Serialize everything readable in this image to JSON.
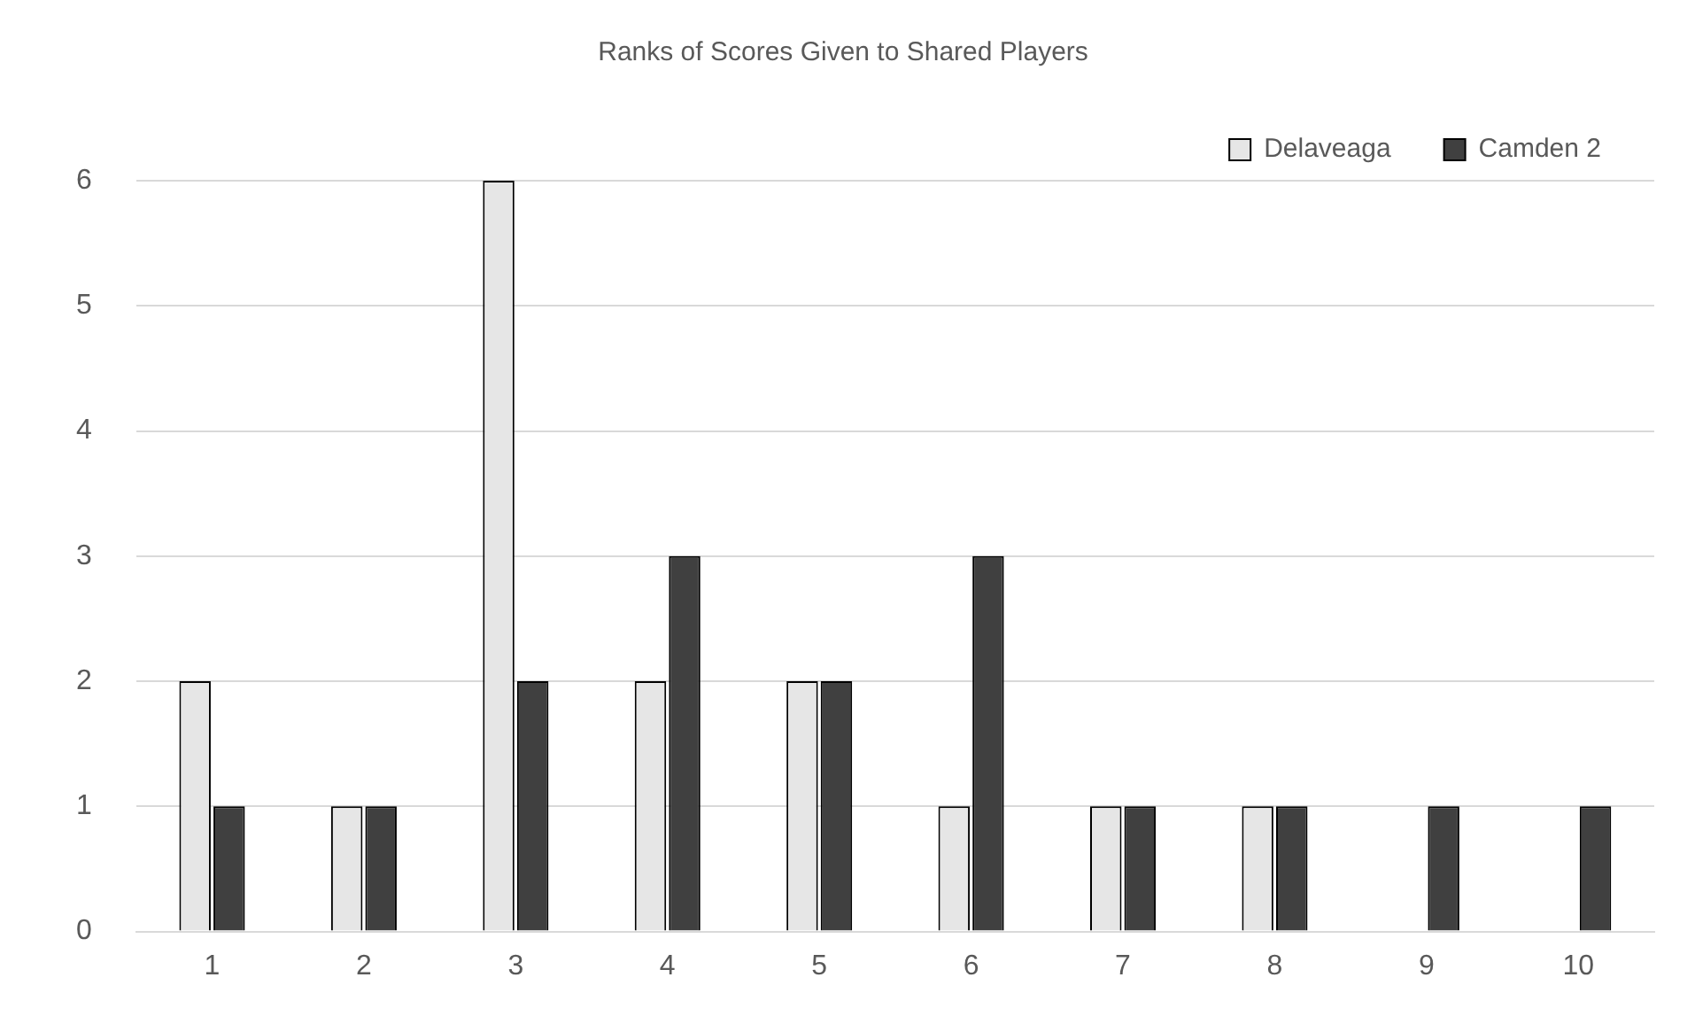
{
  "chart_data": {
    "type": "bar",
    "title": "Ranks of Scores Given to Shared Players",
    "categories": [
      "1",
      "2",
      "3",
      "4",
      "5",
      "6",
      "7",
      "8",
      "9",
      "10"
    ],
    "series": [
      {
        "name": "Delaveaga",
        "color": "#e6e6e6",
        "values": [
          2,
          1,
          6,
          2,
          2,
          1,
          1,
          1,
          0,
          0
        ]
      },
      {
        "name": "Camden 2",
        "color": "#404040",
        "values": [
          1,
          1,
          2,
          3,
          2,
          3,
          1,
          1,
          1,
          1
        ]
      }
    ],
    "ylim": [
      0,
      6
    ],
    "yticks": [
      0,
      1,
      2,
      3,
      4,
      5,
      6
    ],
    "grid": "y",
    "legend": "top right"
  }
}
